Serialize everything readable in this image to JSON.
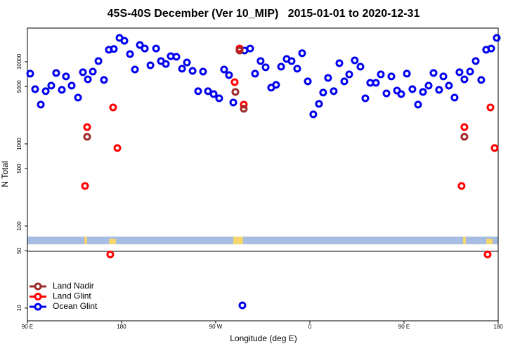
{
  "chart_data": {
    "type": "scatter",
    "title": "45S-40S December (Ver 10_MIP)   2015-01-01 to 2020-12-31",
    "x_label": "Longitude (deg E)",
    "y_label": "N Total",
    "log_y": true,
    "xlim": [
      90,
      540
    ],
    "ylim": [
      7,
      25700
    ],
    "xticks": [
      {
        "value": 90,
        "label": "90 E"
      },
      180,
      {
        "value": 270,
        "label": "90 W"
      },
      {
        "value": 360,
        "label": "0"
      },
      {
        "value": 450,
        "label": "90 E"
      },
      {
        "value": 540,
        "label": "180"
      }
    ],
    "yticks": [
      10,
      50,
      100,
      500,
      1000,
      5000,
      10000
    ],
    "legend": "bottom-left",
    "series": [
      {
        "name": "Land Nadir",
        "color": "#9c2a2a",
        "x": [
          147.1,
          288.8,
          292.8,
          296.8,
          507.7
        ],
        "values": [
          1220,
          4290,
          13700,
          2670,
          1220
        ]
      },
      {
        "name": "Land Glint",
        "color": "#ff0000",
        "x": [
          145.1,
          147.1,
          169.2,
          171.9,
          176.0,
          288.1,
          292.8,
          296.8,
          505.0,
          507.7,
          529.9,
          532.6,
          536.6
        ],
        "values": [
          307,
          1600,
          45,
          2780,
          890,
          5650,
          14500,
          3010,
          307,
          1600,
          45,
          2780,
          890
        ]
      },
      {
        "name": "Ocean Glint",
        "color": "#0000ee",
        "x": [
          92.7,
          97.4,
          102.8,
          107.5,
          112.8,
          117.5,
          122.9,
          126.9,
          132.3,
          138.4,
          143.1,
          147.8,
          152.5,
          157.9,
          163.2,
          167.9,
          172.6,
          178.0,
          182.7,
          188.1,
          192.8,
          197.5,
          202.2,
          207.6,
          213.0,
          217.7,
          222.3,
          227.0,
          232.4,
          237.8,
          242.5,
          247.9,
          253.2,
          257.9,
          262.6,
          268.0,
          273.3,
          278.0,
          282.7,
          286.8,
          295.5,
          297.5,
          302.9,
          307.6,
          312.9,
          317.7,
          323.0,
          327.7,
          332.5,
          337.8,
          342.5,
          347.9,
          352.6,
          358.0,
          363.3,
          368.7,
          372.7,
          377.4,
          382.8,
          388.2,
          392.9,
          397.6,
          402.9,
          408.3,
          413.0,
          417.7,
          423.1,
          427.8,
          433.2,
          437.9,
          443.3,
          447.3,
          452.7,
          458.0,
          463.4,
          468.1,
          473.5,
          478.2,
          483.5,
          487.6,
          492.9,
          498.3,
          503.0,
          507.7,
          513.1,
          518.5,
          523.8,
          528.5,
          533.3,
          538.6
        ],
        "values": [
          7160,
          4640,
          3010,
          4380,
          5120,
          7300,
          4550,
          6620,
          5120,
          3660,
          7450,
          6110,
          7590,
          10200,
          6000,
          14000,
          14300,
          19500,
          18000,
          12400,
          8050,
          16000,
          14500,
          9060,
          14500,
          10200,
          9400,
          11700,
          11500,
          8220,
          9800,
          7740,
          4380,
          7590,
          4380,
          4040,
          3590,
          8050,
          6880,
          3190,
          10.8,
          13700,
          14500,
          7160,
          10200,
          8550,
          4830,
          5230,
          8710,
          10800,
          10200,
          8220,
          12700,
          5770,
          2290,
          3070,
          4210,
          6360,
          4380,
          9600,
          5770,
          7020,
          10400,
          8710,
          3590,
          5540,
          5540,
          7020,
          4120,
          6620,
          4460,
          4040,
          7160,
          4640,
          3010,
          4290,
          5120,
          7300,
          4550,
          6620,
          5120,
          3660,
          7450,
          6110,
          7590,
          10200,
          6000,
          14000,
          14500,
          19500
        ]
      }
    ]
  }
}
